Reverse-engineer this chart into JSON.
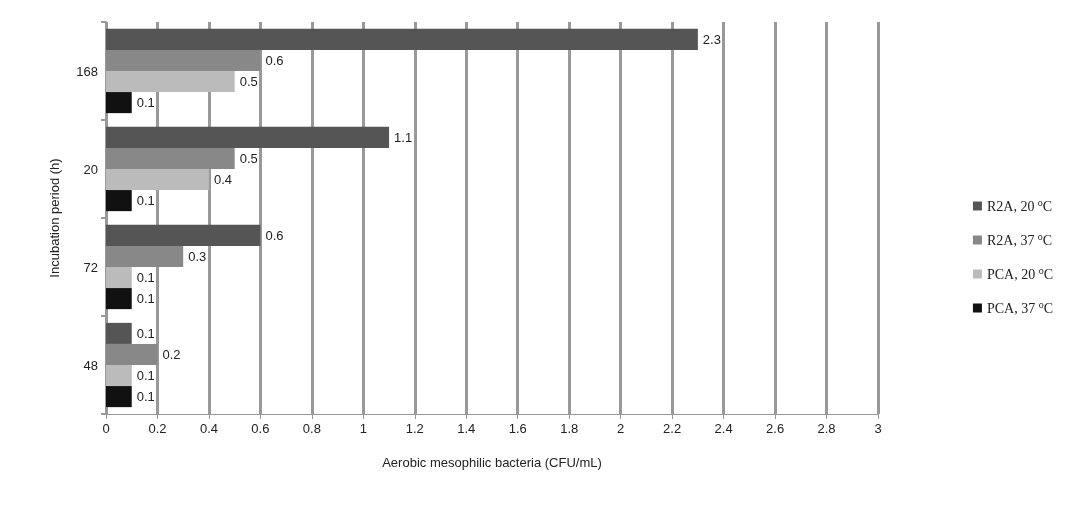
{
  "chart_data": {
    "type": "bar",
    "orientation": "horizontal",
    "xlabel": "Aerobic mesophilic bacteria (CFU/mL)",
    "ylabel": "Incubation period (h)",
    "categories": [
      "168",
      "20",
      "72",
      "48"
    ],
    "series": [
      {
        "name": "R2A, 20 $^{o}$C",
        "color": "#555555",
        "values": [
          2.3,
          1.1,
          0.6,
          0.1
        ]
      },
      {
        "name": "R2A, 37 $^{o}$C",
        "color": "#888888",
        "values": [
          0.6,
          0.5,
          0.3,
          0.2
        ]
      },
      {
        "name": "PCA, 20 $^{o}$C",
        "color": "#bbbbbb",
        "values": [
          0.5,
          0.4,
          0.1,
          0.1
        ]
      },
      {
        "name": "PCA, 37 $^{o}$C",
        "color": "#111111",
        "values": [
          0.1,
          0.1,
          0.1,
          0.1
        ]
      }
    ],
    "xlim": [
      0,
      3
    ],
    "xticks": [
      0,
      0.2,
      0.4,
      0.6,
      0.8,
      1,
      1.2,
      1.4,
      1.6,
      1.8,
      2,
      2.2,
      2.4,
      2.6,
      2.8,
      3
    ],
    "grid": "x",
    "legend": "right",
    "data_labels": true
  }
}
